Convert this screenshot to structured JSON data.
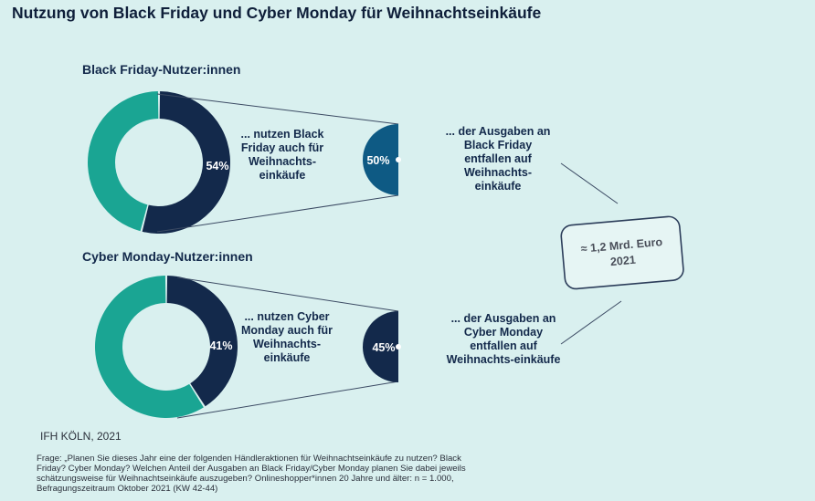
{
  "title": "Nutzung von Black Friday und Cyber Monday für Weihnachtseinkäufe",
  "chart_data": [
    {
      "type": "pie",
      "title": "Black Friday-Nutzer:innen",
      "share_users": 54,
      "share_label": "54%",
      "users_text": "... nutzen Black Friday auch für Weihnachts-einkäufe",
      "spending_share": 50,
      "spending_label": "50%",
      "spending_text": "... der Ausgaben an Black Friday entfallen auf Weihnachts-einkäufe",
      "colors": {
        "users": "#13294b",
        "rest": "#1aa593",
        "spending": "#0e5a84"
      }
    },
    {
      "type": "pie",
      "title": "Cyber Monday-Nutzer:innen",
      "share_users": 41,
      "share_label": "41%",
      "users_text": "... nutzen Cyber Monday auch für Weihnachts-einkäufe",
      "spending_share": 45,
      "spending_label": "45%",
      "spending_text": "... der Ausgaben an Cyber Monday entfallen auf Weihnachts-einkäufe",
      "colors": {
        "users": "#13294b",
        "rest": "#1aa593",
        "spending": "#13294b"
      }
    }
  ],
  "callout": {
    "line1": "≈ 1,2 Mrd. Euro",
    "line2": "2021"
  },
  "source": "IFH KÖLN, 2021",
  "footnote": "Frage: „Planen Sie dieses Jahr eine der folgenden Händleraktionen für Weihnachtseinkäufe zu nutzen? Black Friday? Cyber Monday? Welchen Anteil der Ausgaben an Black Friday/Cyber Monday planen Sie dabei jeweils schätzungsweise für Weihnachtseinkäufe auszugeben? Onlineshopper*innen 20 Jahre und älter: n = 1.000, Befragungszeitraum Oktober 2021 (KW 42-44)"
}
